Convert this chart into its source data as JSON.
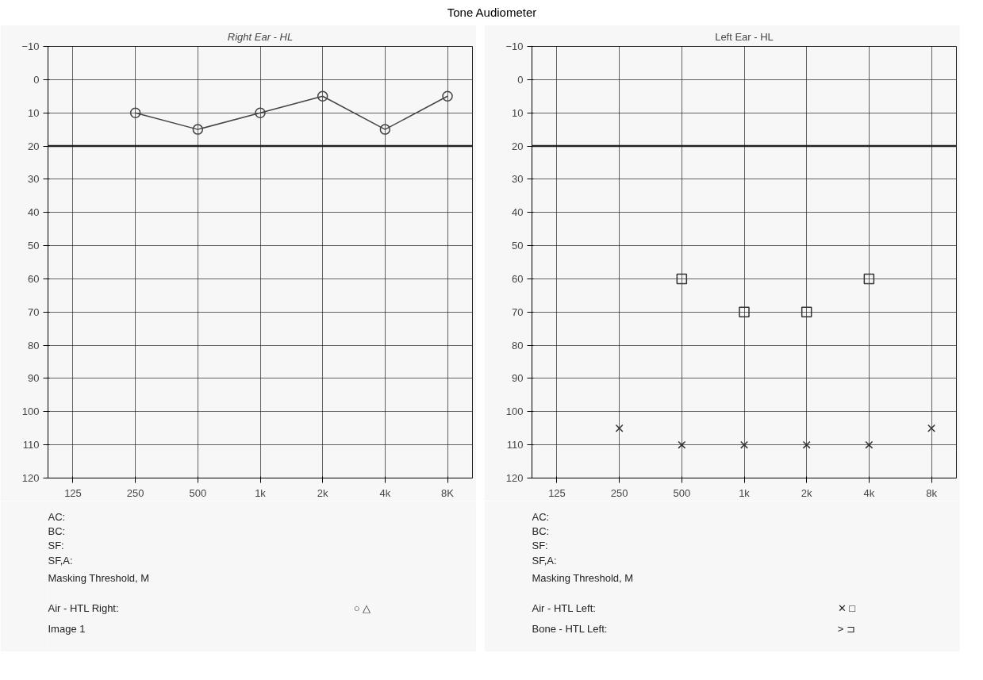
{
  "chart_data": [
    {
      "type": "line",
      "title": "Tone Audiometer",
      "subtitle": "Right Ear - HL",
      "categories": [
        "125",
        "250",
        "500",
        "1k",
        "2k",
        "4k",
        "8K"
      ],
      "ylim": [
        120,
        -10
      ],
      "yticks": [
        -10,
        0,
        10,
        20,
        30,
        40,
        50,
        60,
        70,
        80,
        90,
        100,
        110,
        120
      ],
      "grid": true,
      "series": [
        {
          "marker": "circle",
          "color": "#444444",
          "values": [
            null,
            10,
            15,
            10,
            5,
            15,
            5
          ]
        }
      ],
      "ref_lines": [
        {
          "axis": "y",
          "value": 20,
          "color": "#222222"
        }
      ],
      "annotations": [
        "AC:",
        "BC:",
        "SF:",
        "SF,A:",
        "Masking Threshold, M",
        "Air - HTL Right:",
        "○ △",
        "Image 1"
      ]
    },
    {
      "type": "scatter",
      "subtitle": "Left Ear - HL",
      "categories": [
        "125",
        "250",
        "500",
        "1k",
        "2k",
        "4k",
        "8k"
      ],
      "ylim": [
        120,
        -10
      ],
      "yticks": [
        -10,
        0,
        10,
        20,
        30,
        40,
        50,
        60,
        70,
        80,
        90,
        100,
        110,
        120
      ],
      "grid": true,
      "series": [
        {
          "marker": "cross",
          "color": "#333333",
          "values": [
            null,
            105,
            110,
            110,
            110,
            110,
            105
          ]
        },
        {
          "marker": "square",
          "color": "#333333",
          "values": [
            null,
            null,
            60,
            70,
            70,
            60,
            null
          ]
        }
      ],
      "ref_lines": [
        {
          "axis": "y",
          "value": 20,
          "color": "#222222"
        }
      ],
      "annotations": [
        "AC:",
        "BC:",
        "SF:",
        "SF,A:",
        "Masking Threshold, M",
        "Air - HTL Left:",
        "✕ □",
        "Bone - HTL Left:",
        "> ⊐"
      ]
    }
  ]
}
